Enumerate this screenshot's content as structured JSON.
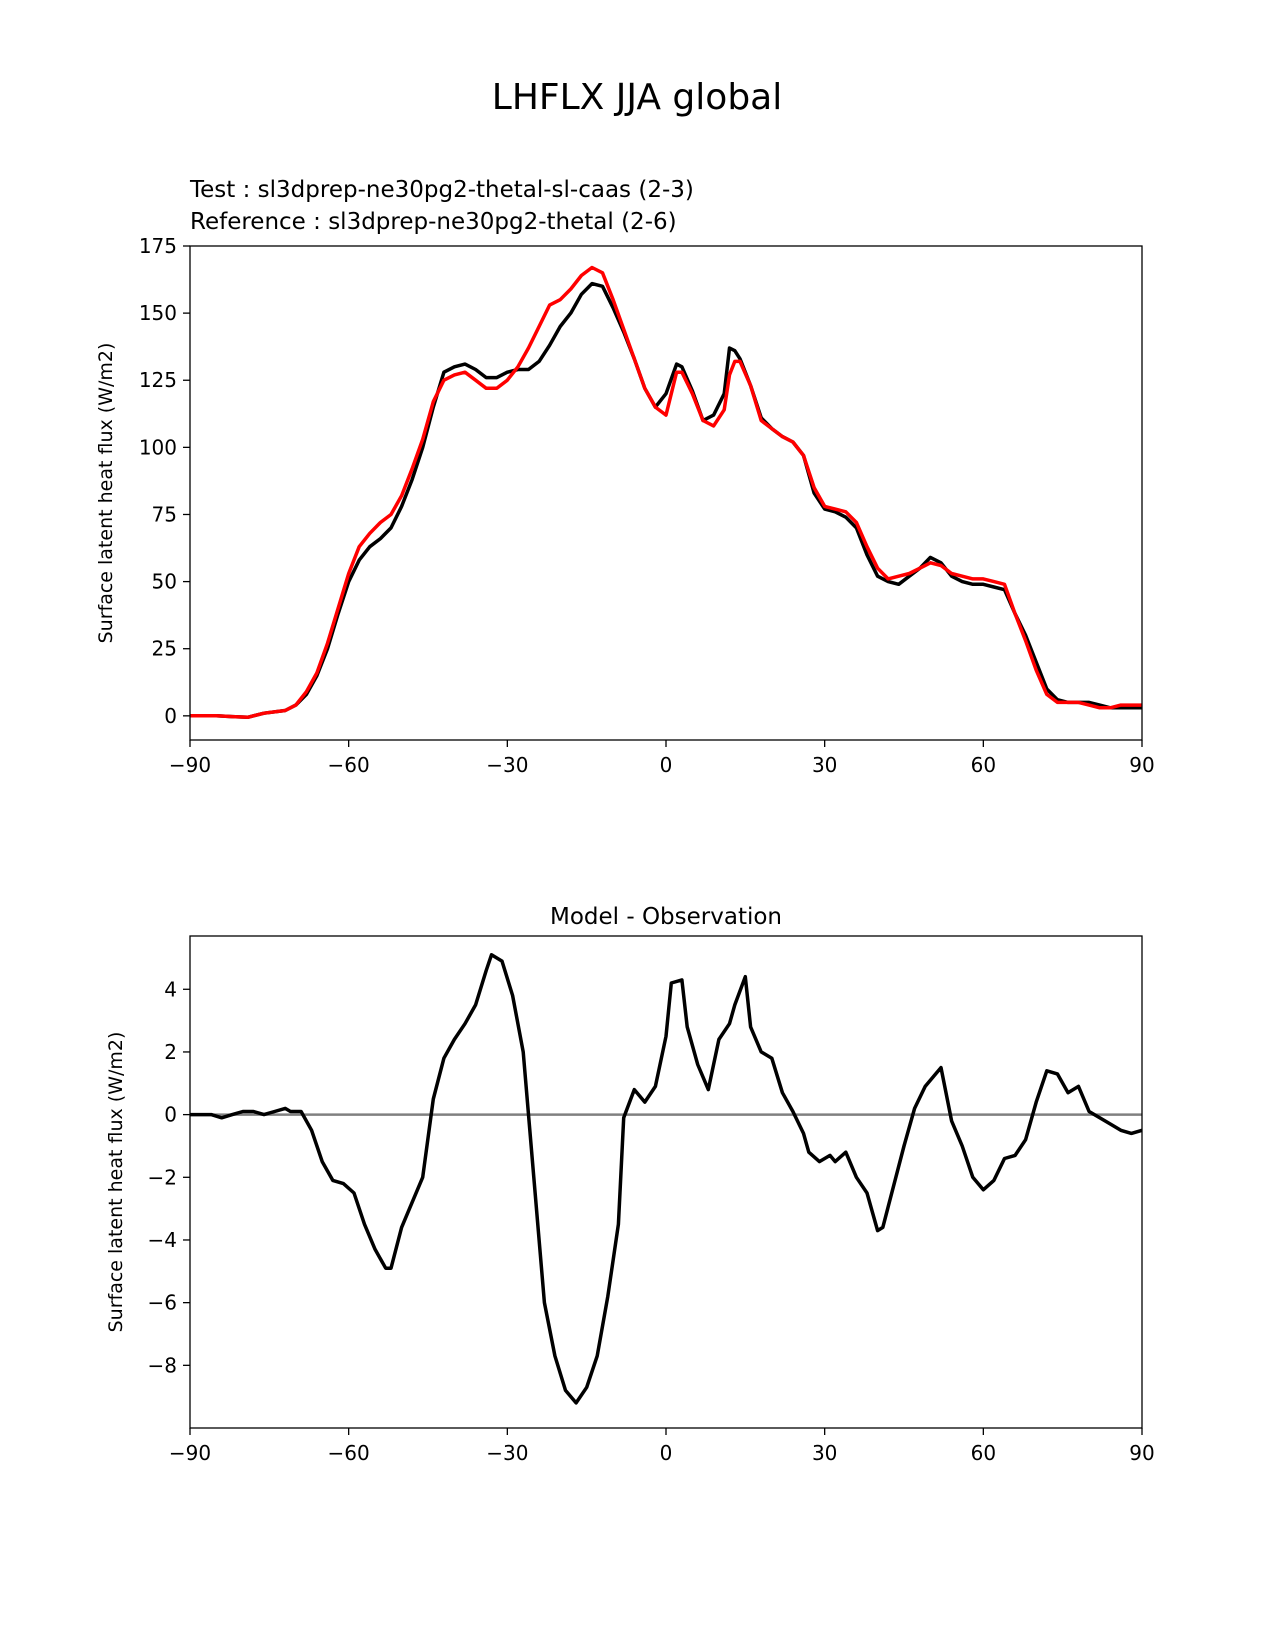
{
  "figure": {
    "title": "LHFLX JJA global"
  },
  "colors": {
    "test": "#000000",
    "reference": "#ff0000",
    "zero_line": "#808080"
  },
  "chart_data": [
    {
      "type": "line",
      "test_label": "Test : sl3dprep-ne30pg2-thetal-sl-caas (2-3)",
      "reference_label": "Reference : sl3dprep-ne30pg2-thetal (2-6)",
      "xlabel": "",
      "ylabel": "Surface latent heat flux (W/m2)",
      "xlim": [
        -90,
        90
      ],
      "ylim": [
        -9,
        175
      ],
      "xticks": [
        -90,
        -60,
        -30,
        0,
        30,
        60,
        90
      ],
      "xtick_labels": [
        "−90",
        "−60",
        "−30",
        "0",
        "30",
        "60",
        "90"
      ],
      "yticks": [
        0,
        25,
        50,
        75,
        100,
        125,
        150,
        175
      ],
      "ytick_labels": [
        "0",
        "25",
        "50",
        "75",
        "100",
        "125",
        "150",
        "175"
      ],
      "series": [
        {
          "name": "Test : sl3dprep-ne30pg2-thetal-sl-caas (2-3)",
          "color": "#000000",
          "x": [
            -90,
            -85,
            -82,
            -79,
            -78,
            -76,
            -72,
            -70,
            -68,
            -66,
            -64,
            -62,
            -60,
            -58,
            -56,
            -54,
            -52,
            -50,
            -48,
            -46,
            -44,
            -42,
            -40,
            -38,
            -36,
            -34,
            -32,
            -30,
            -28,
            -26,
            -24,
            -22,
            -20,
            -18,
            -16,
            -14,
            -12,
            -10,
            -8,
            -6,
            -4,
            -2,
            0,
            2,
            3,
            5,
            7,
            9,
            11,
            12,
            13,
            14,
            16,
            18,
            20,
            22,
            24,
            26,
            28,
            30,
            32,
            34,
            36,
            38,
            40,
            42,
            44,
            46,
            48,
            50,
            52,
            54,
            56,
            58,
            60,
            62,
            64,
            66,
            68,
            70,
            72,
            74,
            76,
            78,
            80,
            82,
            84,
            86,
            88,
            90
          ],
          "values": [
            0,
            0,
            -0.3,
            -0.5,
            0,
            1,
            2,
            4,
            8,
            15,
            25,
            38,
            50,
            58,
            63,
            66,
            70,
            78,
            88,
            100,
            115,
            128,
            130,
            131,
            129,
            126,
            126,
            128,
            129,
            129,
            132,
            138,
            145,
            150,
            157,
            161,
            160,
            152,
            143,
            133,
            122,
            115,
            120,
            131,
            130,
            121,
            110,
            112,
            120,
            137,
            136,
            133,
            123,
            111,
            107,
            104,
            102,
            97,
            83,
            77,
            76,
            74,
            70,
            60,
            52,
            50,
            49,
            52,
            55,
            59,
            57,
            52,
            50,
            49,
            49,
            48,
            47,
            38,
            30,
            20,
            10,
            6,
            5,
            5,
            5,
            4,
            3,
            3,
            3,
            3
          ]
        },
        {
          "name": "Reference : sl3dprep-ne30pg2-thetal (2-6)",
          "color": "#ff0000",
          "x": [
            -90,
            -85,
            -82,
            -79,
            -78,
            -76,
            -72,
            -70,
            -68,
            -66,
            -64,
            -62,
            -60,
            -58,
            -56,
            -54,
            -52,
            -50,
            -48,
            -46,
            -44,
            -42,
            -40,
            -38,
            -36,
            -34,
            -32,
            -30,
            -28,
            -26,
            -24,
            -22,
            -20,
            -18,
            -16,
            -14,
            -12,
            -10,
            -8,
            -6,
            -4,
            -2,
            0,
            2,
            3,
            5,
            7,
            9,
            11,
            12,
            13,
            14,
            16,
            18,
            20,
            22,
            24,
            26,
            28,
            30,
            32,
            34,
            36,
            38,
            40,
            42,
            44,
            46,
            48,
            50,
            52,
            54,
            56,
            58,
            60,
            62,
            64,
            66,
            68,
            70,
            72,
            74,
            76,
            78,
            80,
            82,
            84,
            86,
            88,
            90
          ],
          "values": [
            0,
            0,
            -0.3,
            -0.5,
            0,
            1,
            2,
            4,
            9,
            16,
            27,
            40,
            53,
            63,
            68,
            72,
            75,
            82,
            92,
            103,
            117,
            125,
            127,
            128,
            125,
            122,
            122,
            125,
            130,
            137,
            145,
            153,
            155,
            159,
            164,
            167,
            165,
            155,
            144,
            133,
            122,
            115,
            112,
            128,
            128,
            120,
            110,
            108,
            114,
            127,
            132,
            132,
            123,
            110,
            107,
            104,
            102,
            97,
            85,
            78,
            77,
            76,
            72,
            63,
            55,
            51,
            52,
            53,
            55,
            57,
            56,
            53,
            52,
            51,
            51,
            50,
            49,
            38,
            28,
            17,
            8,
            5,
            5,
            5,
            4,
            3,
            3,
            4,
            4,
            4
          ]
        }
      ]
    },
    {
      "type": "line",
      "title": "Model - Observation",
      "xlabel": "",
      "ylabel": "Surface latent heat flux (W/m2)",
      "xlim": [
        -90,
        90
      ],
      "ylim": [
        -10,
        5.7
      ],
      "xticks": [
        -90,
        -60,
        -30,
        0,
        30,
        60,
        90
      ],
      "xtick_labels": [
        "−90",
        "−60",
        "−30",
        "0",
        "30",
        "60",
        "90"
      ],
      "yticks": [
        -8,
        -6,
        -4,
        -2,
        0,
        2,
        4
      ],
      "ytick_labels": [
        "−8",
        "−6",
        "−4",
        "−2",
        "0",
        "2",
        "4"
      ],
      "zero_line": true,
      "series": [
        {
          "color": "#000000",
          "x": [
            -90,
            -86,
            -84,
            -82,
            -80,
            -78,
            -76,
            -74,
            -72,
            -71,
            -69,
            -67,
            -65,
            -63,
            -61,
            -59,
            -57,
            -55,
            -53,
            -52,
            -50,
            -48,
            -46,
            -44,
            -42,
            -40,
            -38,
            -36,
            -34,
            -33,
            -31,
            -29,
            -27,
            -25,
            -23,
            -21,
            -19,
            -17,
            -15,
            -13,
            -11,
            -9,
            -8,
            -6,
            -4,
            -2,
            0,
            1,
            3,
            4,
            6,
            8,
            10,
            12,
            13,
            15,
            16,
            18,
            20,
            22,
            24,
            26,
            27,
            29,
            31,
            32,
            34,
            36,
            38,
            40,
            41,
            43,
            45,
            47,
            49,
            51,
            52,
            54,
            56,
            58,
            60,
            62,
            64,
            66,
            68,
            70,
            72,
            74,
            76,
            78,
            80,
            82,
            84,
            86,
            88,
            90
          ],
          "values": [
            0,
            0,
            -0.1,
            0,
            0.1,
            0.1,
            0,
            0.1,
            0.2,
            0.1,
            0.1,
            -0.5,
            -1.5,
            -2.1,
            -2.2,
            -2.5,
            -3.5,
            -4.3,
            -4.9,
            -4.9,
            -3.6,
            -2.8,
            -2,
            0.5,
            1.8,
            2.4,
            2.9,
            3.5,
            4.6,
            5.1,
            4.9,
            3.8,
            2,
            -2,
            -6,
            -7.7,
            -8.8,
            -9.2,
            -8.7,
            -7.7,
            -5.8,
            -3.5,
            -0.1,
            0.8,
            0.4,
            0.9,
            2.5,
            4.2,
            4.3,
            2.8,
            1.6,
            0.8,
            2.4,
            2.9,
            3.5,
            4.4,
            2.8,
            2,
            1.8,
            0.7,
            0.1,
            -0.6,
            -1.2,
            -1.5,
            -1.3,
            -1.5,
            -1.2,
            -2,
            -2.5,
            -3.7,
            -3.6,
            -2.3,
            -1,
            0.2,
            0.9,
            1.3,
            1.5,
            -0.2,
            -1,
            -2,
            -2.4,
            -2.1,
            -1.4,
            -1.3,
            -0.8,
            0.4,
            1.4,
            1.3,
            0.7,
            0.9,
            0.1,
            -0.1,
            -0.3,
            -0.5,
            -0.6,
            -0.5
          ]
        }
      ]
    }
  ]
}
